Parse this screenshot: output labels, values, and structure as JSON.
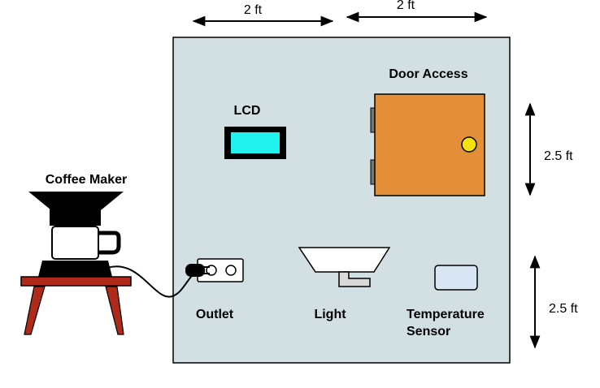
{
  "labels": {
    "dim_top_left": "2 ft",
    "dim_top_right": "2 ft",
    "dim_right_top": "2.5 ft",
    "dim_right_bottom": "2.5 ft",
    "coffee_maker": "Coffee Maker",
    "lcd": "LCD",
    "door_access": "Door Access",
    "outlet": "Outlet",
    "light": "Light",
    "temperature_line1": "Temperature",
    "temperature_line2": "Sensor"
  },
  "colors": {
    "panel": "#d3e0e3",
    "door": "#e38f3a",
    "doorknob": "#f4e30a",
    "lcd_screen": "#22f2ee",
    "table": "#b02a1a",
    "temp_sensor": "#d9e6f4"
  }
}
